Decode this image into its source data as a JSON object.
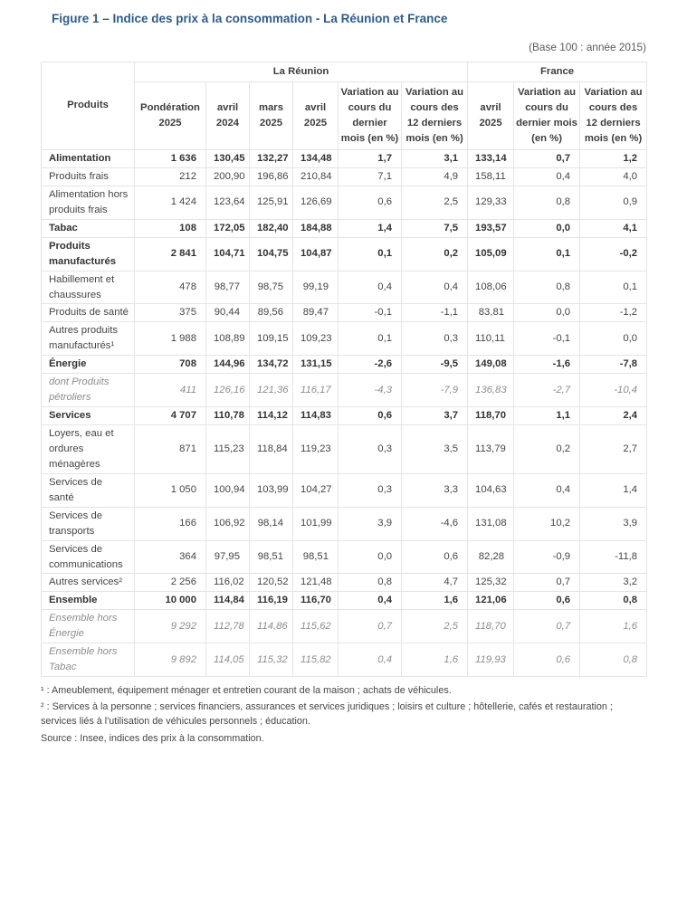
{
  "title": "Figure 1 – Indice des prix à la consommation - La Réunion et France",
  "subtitle": "(Base 100 : année 2015)",
  "colors": {
    "title_blue": "#2b5c8e",
    "border_gray": "#e4e4e4",
    "text_dark": "#333333",
    "text_normal": "#454545",
    "text_muted_italic": "#8d8d8d"
  },
  "table": {
    "produits_header": "Produits",
    "groups": [
      {
        "label": "La Réunion"
      },
      {
        "label": "France"
      }
    ],
    "columns": [
      "Pondération 2025",
      "avril 2024",
      "mars 2025",
      "avril 2025",
      "Variation au cours du dernier mois (en %)",
      "Variation au cours des 12 derniers mois (en %)",
      "avril 2025",
      "Variation au cours du dernier mois (en %)",
      "Variation au cours des 12 derniers mois (en %)"
    ],
    "rows": [
      {
        "label": "Alimentation",
        "style": "bold",
        "values": [
          "1 636",
          "130,45",
          "132,27",
          "134,48",
          "1,7",
          "3,1",
          "133,14",
          "0,7",
          "1,2"
        ]
      },
      {
        "label": "Produits frais",
        "style": "normal",
        "values": [
          "212",
          "200,90",
          "196,86",
          "210,84",
          "7,1",
          "4,9",
          "158,11",
          "0,4",
          "4,0"
        ]
      },
      {
        "label": "Alimentation hors produits frais",
        "style": "normal",
        "values": [
          "1 424",
          "123,64",
          "125,91",
          "126,69",
          "0,6",
          "2,5",
          "129,33",
          "0,8",
          "0,9"
        ]
      },
      {
        "label": "Tabac",
        "style": "bold",
        "values": [
          "108",
          "172,05",
          "182,40",
          "184,88",
          "1,4",
          "7,5",
          "193,57",
          "0,0",
          "4,1"
        ]
      },
      {
        "label": "Produits manufacturés",
        "style": "bold",
        "values": [
          "2 841",
          "104,71",
          "104,75",
          "104,87",
          "0,1",
          "0,2",
          "105,09",
          "0,1",
          "-0,2"
        ]
      },
      {
        "label": "Habillement et chaussures",
        "style": "normal",
        "values": [
          "478",
          "98,77",
          "98,75",
          "99,19",
          "0,4",
          "0,4",
          "108,06",
          "0,8",
          "0,1"
        ]
      },
      {
        "label": "Produits de santé",
        "style": "normal",
        "values": [
          "375",
          "90,44",
          "89,56",
          "89,47",
          "-0,1",
          "-1,1",
          "83,81",
          "0,0",
          "-1,2"
        ]
      },
      {
        "label": "Autres produits manufacturés¹",
        "style": "normal",
        "values": [
          "1 988",
          "108,89",
          "109,15",
          "109,23",
          "0,1",
          "0,3",
          "110,11",
          "-0,1",
          "0,0"
        ]
      },
      {
        "label": "Énergie",
        "style": "bold",
        "values": [
          "708",
          "144,96",
          "134,72",
          "131,15",
          "-2,6",
          "-9,5",
          "149,08",
          "-1,6",
          "-7,8"
        ]
      },
      {
        "label": "dont Produits pétroliers",
        "style": "italic",
        "values": [
          "411",
          "126,16",
          "121,36",
          "116,17",
          "-4,3",
          "-7,9",
          "136,83",
          "-2,7",
          "-10,4"
        ]
      },
      {
        "label": "Services",
        "style": "bold",
        "values": [
          "4 707",
          "110,78",
          "114,12",
          "114,83",
          "0,6",
          "3,7",
          "118,70",
          "1,1",
          "2,4"
        ]
      },
      {
        "label": "Loyers, eau et ordures ménagères",
        "style": "normal",
        "values": [
          "871",
          "115,23",
          "118,84",
          "119,23",
          "0,3",
          "3,5",
          "113,79",
          "0,2",
          "2,7"
        ]
      },
      {
        "label": "Services de santé",
        "style": "normal",
        "values": [
          "1 050",
          "100,94",
          "103,99",
          "104,27",
          "0,3",
          "3,3",
          "104,63",
          "0,4",
          "1,4"
        ]
      },
      {
        "label": "Services de transports",
        "style": "normal",
        "values": [
          "166",
          "106,92",
          "98,14",
          "101,99",
          "3,9",
          "-4,6",
          "131,08",
          "10,2",
          "3,9"
        ]
      },
      {
        "label": "Services de communications",
        "style": "normal",
        "values": [
          "364",
          "97,95",
          "98,51",
          "98,51",
          "0,0",
          "0,6",
          "82,28",
          "-0,9",
          "-11,8"
        ]
      },
      {
        "label": "Autres services²",
        "style": "normal",
        "values": [
          "2 256",
          "116,02",
          "120,52",
          "121,48",
          "0,8",
          "4,7",
          "125,32",
          "0,7",
          "3,2"
        ]
      },
      {
        "label": "Ensemble",
        "style": "bold",
        "values": [
          "10 000",
          "114,84",
          "116,19",
          "116,70",
          "0,4",
          "1,6",
          "121,06",
          "0,6",
          "0,8"
        ]
      },
      {
        "label": "Ensemble hors Énergie",
        "style": "italic",
        "values": [
          "9 292",
          "112,78",
          "114,86",
          "115,62",
          "0,7",
          "2,5",
          "118,70",
          "0,7",
          "1,6"
        ]
      },
      {
        "label": "Ensemble hors Tabac",
        "style": "italic",
        "values": [
          "9 892",
          "114,05",
          "115,32",
          "115,82",
          "0,4",
          "1,6",
          "119,93",
          "0,6",
          "0,8"
        ]
      }
    ]
  },
  "footnotes": [
    "¹ : Ameublement, équipement ménager et entretien courant de la maison ; achats de véhicules.",
    "² : Services à la personne ; services financiers, assurances et services juridiques ; loisirs et culture ; hôtellerie, cafés et restauration ; services liés à l'utilisation de véhicules personnels ; éducation."
  ],
  "source": "Source : Insee, indices des prix à la consommation."
}
